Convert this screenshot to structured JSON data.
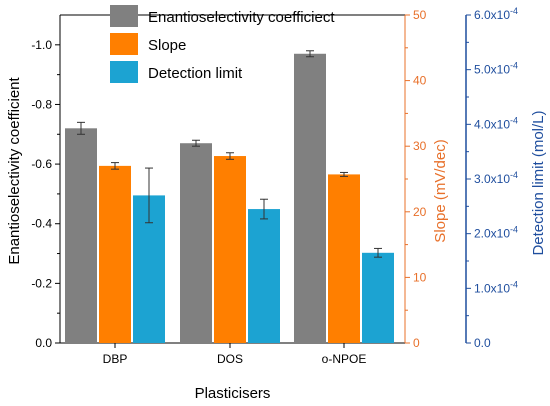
{
  "chart_data": {
    "type": "bar",
    "categories": [
      "DBP",
      "DOS",
      "o-NPOE"
    ],
    "series": [
      {
        "name": "Enantioselectivity coefficiect",
        "axis": "left",
        "color": "#808080",
        "values": [
          -0.72,
          -0.67,
          -0.97
        ],
        "errors": [
          0.02,
          0.01,
          0.01
        ]
      },
      {
        "name": "Slope",
        "axis": "right1",
        "color": "#ff7f00",
        "values": [
          27,
          28.5,
          25.7
        ],
        "errors": [
          0.5,
          0.5,
          0.3
        ]
      },
      {
        "name": "Detection limit",
        "axis": "right2",
        "color": "#1ca3d2",
        "values": [
          0.00027,
          0.000245,
          0.000165
        ],
        "errors": [
          5e-05,
          1.8e-05,
          8e-06
        ]
      }
    ],
    "xlabel": "Plasticisers",
    "axes": {
      "left": {
        "label": "Enantioselectivity coefficient",
        "ylim": [
          0,
          -1.1
        ],
        "ticks": [
          "0.0",
          "-0.2",
          "-0.4",
          "-0.6",
          "-0.8",
          "-1.0"
        ],
        "color": "#000000"
      },
      "right1": {
        "label": "Slope (mV/dec)",
        "ylim": [
          0,
          50
        ],
        "ticks": [
          "0",
          "10",
          "20",
          "30",
          "40",
          "50"
        ],
        "color": "#e8702a"
      },
      "right2": {
        "label": "Detection limit (mol/L)",
        "ylim": [
          0,
          0.0006
        ],
        "ticks": [
          "0.0",
          "1.0x10-4",
          "2.0x10-4",
          "3.0x10-4",
          "4.0x10-4",
          "5.0x10-4",
          "6.0x10-4"
        ],
        "color": "#1f4e9e"
      }
    },
    "legend_position": "top-center",
    "grid": false
  }
}
